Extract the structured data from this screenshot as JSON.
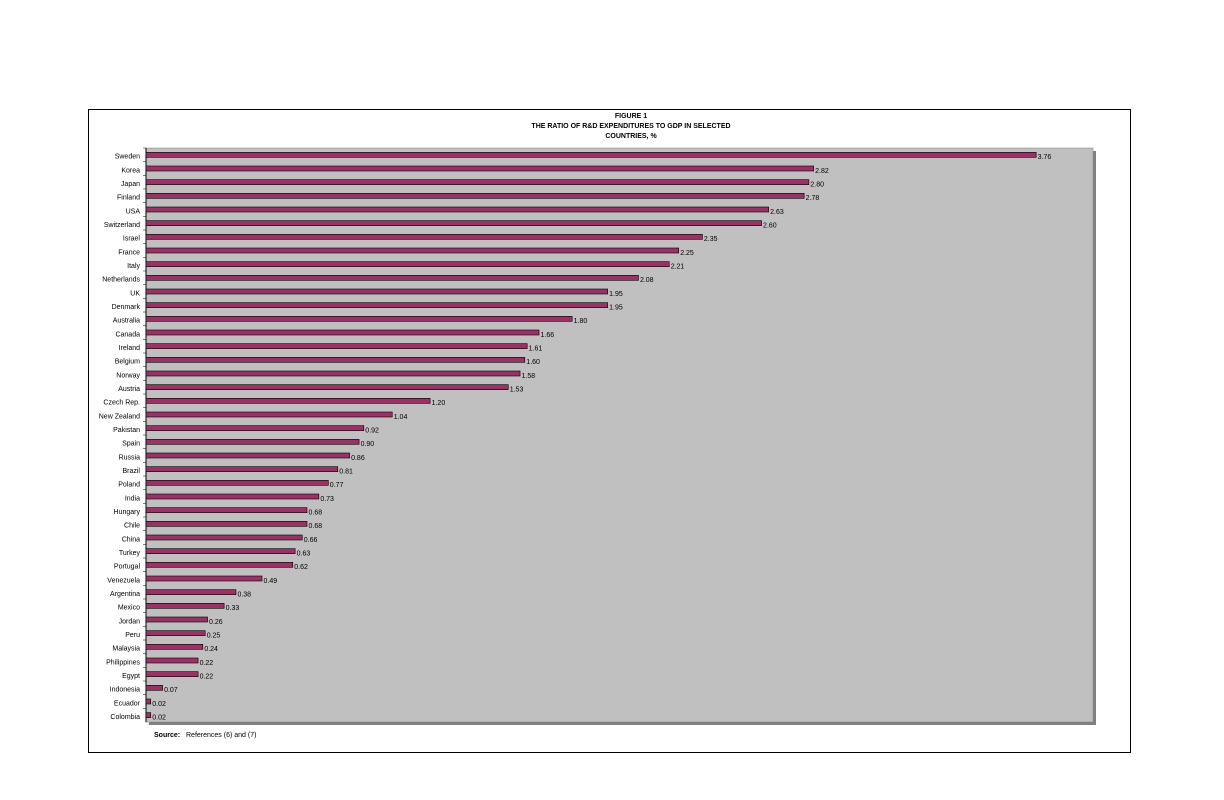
{
  "chart_data": {
    "type": "bar",
    "orientation": "horizontal",
    "title": [
      "FIGURE 1",
      "THE RATIO OF R&D EXPENDITURES TO GDP IN SELECTED",
      "COUNTRIES, %"
    ],
    "categories": [
      "Sweden",
      "Korea",
      "Japan",
      "Finland",
      "USA",
      "Switzerland",
      "Israel",
      "France",
      "Italy",
      "Netherlands",
      "UK",
      "Denmark",
      "Australia",
      "Canada",
      "Ireland",
      "Belgium",
      "Norway",
      "Austria",
      "Czech Rep.",
      "New Zealand",
      "Pakistan",
      "Spain",
      "Russia",
      "Brazil",
      "Poland",
      "India",
      "Hungary",
      "Chile",
      "China",
      "Turkey",
      "Portugal",
      "Venezuela",
      "Argentina",
      "Mexico",
      "Jordan",
      "Peru",
      "Malaysia",
      "Philippines",
      "Egypt",
      "Indonesia",
      "Ecuador",
      "Colombia"
    ],
    "values": [
      3.76,
      2.82,
      2.8,
      2.78,
      2.63,
      2.6,
      2.35,
      2.25,
      2.21,
      2.08,
      1.95,
      1.95,
      1.8,
      1.66,
      1.61,
      1.6,
      1.58,
      1.53,
      1.2,
      1.04,
      0.92,
      0.9,
      0.86,
      0.81,
      0.77,
      0.73,
      0.68,
      0.68,
      0.66,
      0.63,
      0.62,
      0.49,
      0.38,
      0.33,
      0.26,
      0.25,
      0.24,
      0.22,
      0.22,
      0.07,
      0.02,
      0.02
    ],
    "value_labels": [
      "3.76",
      "2.82",
      "2.80",
      "2.78",
      "2.63",
      "2.60",
      "2.35",
      "2.25",
      "2.21",
      "2.08",
      "1.95",
      "1.95",
      "1.80",
      "1.66",
      "1.61",
      "1.60",
      "1.58",
      "1.53",
      "1.20",
      "1.04",
      "0.92",
      "0.90",
      "0.86",
      "0.81",
      "0.77",
      "0.73",
      "0.68",
      "0.68",
      "0.66",
      "0.63",
      "0.62",
      "0.49",
      "0.38",
      "0.33",
      "0.26",
      "0.25",
      "0.24",
      "0.22",
      "0.22",
      "0.07",
      "0.02",
      "0.02"
    ],
    "color": "#993366",
    "plot_background": "#c0c0c0",
    "xlim": [
      0,
      4
    ],
    "source": {
      "label": "Source:",
      "text": "References (6) and (7)"
    }
  }
}
